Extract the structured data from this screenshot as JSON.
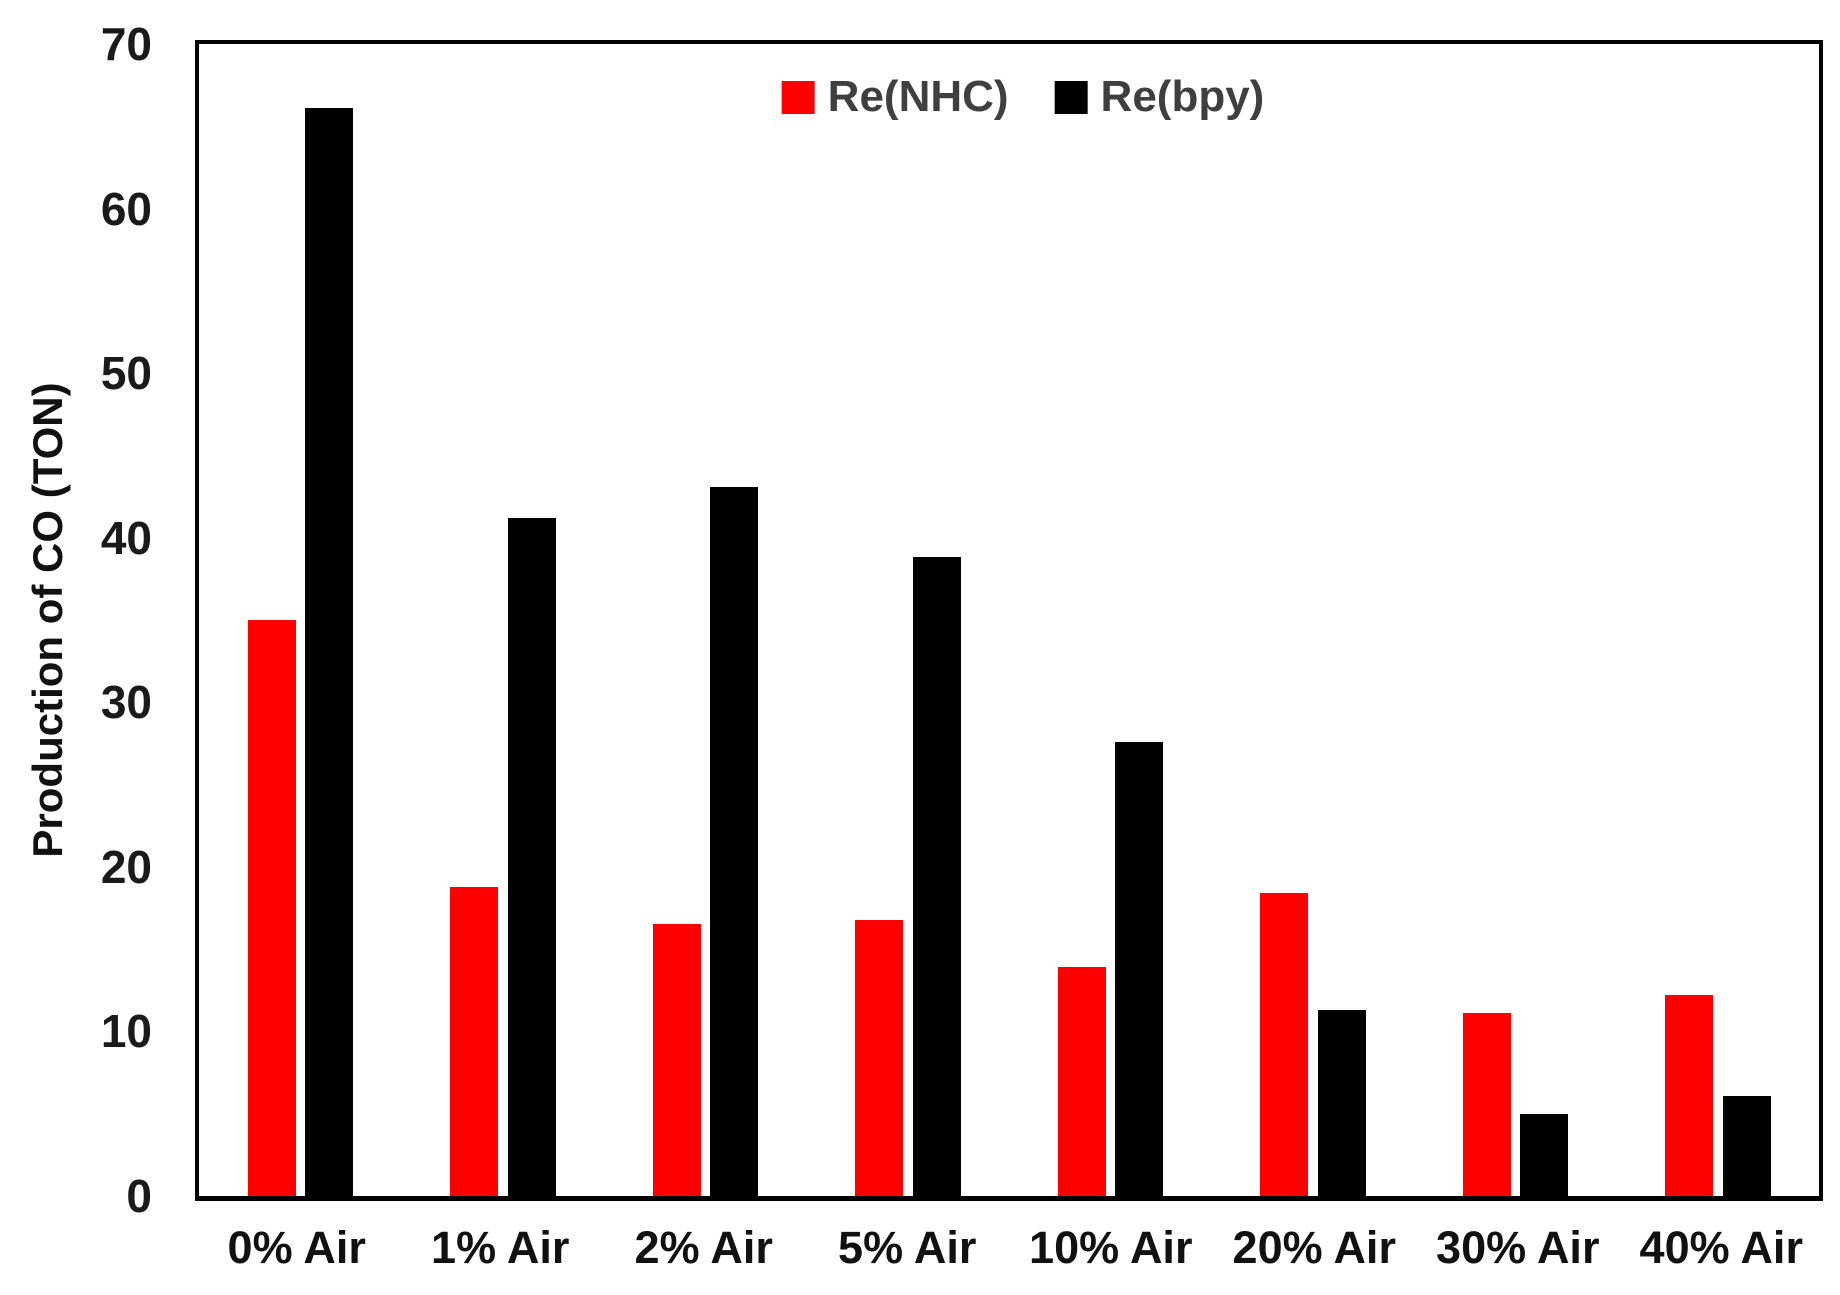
{
  "chart_data": {
    "type": "bar",
    "title": "",
    "xlabel": "",
    "ylabel": "Production of CO (TON)",
    "ylim": [
      0,
      70
    ],
    "yticks": [
      0,
      10,
      20,
      30,
      40,
      50,
      60,
      70
    ],
    "grid": false,
    "legend_position": "top-center",
    "categories": [
      "0% Air",
      "1% Air",
      "2% Air",
      "5% Air",
      "10% Air",
      "20% Air",
      "30% Air",
      "40% Air"
    ],
    "series": [
      {
        "name": "Re(NHC)",
        "color": "#FF0000",
        "values": [
          35.0,
          18.8,
          16.5,
          16.8,
          13.9,
          18.4,
          11.1,
          12.2
        ]
      },
      {
        "name": "Re(bpy)",
        "color": "#000000",
        "values": [
          66.1,
          41.2,
          43.1,
          38.8,
          27.6,
          11.3,
          5.0,
          6.1
        ]
      }
    ]
  }
}
